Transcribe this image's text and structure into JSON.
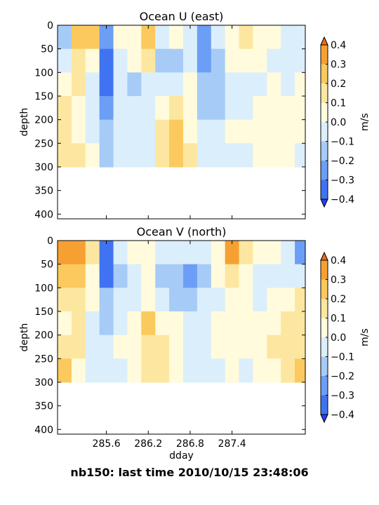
{
  "figure": {
    "footer": "nb150: last time 2010/10/15 23:48:06",
    "shared_xlabel": "dday"
  },
  "colormap": {
    "levels": [
      -0.4,
      -0.3,
      -0.2,
      -0.1,
      0.0,
      0.1,
      0.2,
      0.3,
      0.4
    ],
    "colors": [
      "#2a3ef0",
      "#3f73f2",
      "#6c9ef5",
      "#a6cbf6",
      "#dbeefb",
      "#fffbdc",
      "#fde7a0",
      "#fbc95d",
      "#f7a032",
      "#ef6a16"
    ],
    "extend": "both",
    "tick_labels": [
      "0.4",
      "0.3",
      "0.2",
      "0.1",
      "0.0",
      "−0.1",
      "−0.2",
      "−0.3",
      "−0.4"
    ],
    "unit_label": "m/s"
  },
  "chart_data": [
    {
      "type": "heatmap",
      "title": "Ocean U (east)",
      "xlabel": "",
      "ylabel": "depth",
      "x_ticks": [
        "285.6",
        "286.2",
        "286.8",
        "287.4"
      ],
      "x_tick_values": [
        285.6,
        286.2,
        286.8,
        287.4
      ],
      "xlim": [
        284.9,
        288.45
      ],
      "y_ticks": [
        "0",
        "50",
        "100",
        "150",
        "200",
        "250",
        "300",
        "350",
        "400"
      ],
      "y_tick_values": [
        0,
        50,
        100,
        150,
        200,
        250,
        300,
        350,
        400
      ],
      "ylim": [
        410,
        0
      ],
      "y_inverted": true,
      "depth_bins": [
        25,
        75,
        125,
        175,
        225,
        275
      ],
      "day_bins": [
        285.0,
        285.2,
        285.4,
        285.6,
        285.8,
        286.0,
        286.2,
        286.4,
        286.6,
        286.8,
        287.0,
        287.2,
        287.4,
        287.6,
        287.8,
        288.0,
        288.2,
        288.4
      ],
      "values": [
        [
          -0.15,
          0.2,
          0.2,
          -0.25,
          0.0,
          0.05,
          0.25,
          -0.05,
          0.0,
          -0.05,
          -0.3,
          -0.1,
          0.05,
          0.1,
          0.05,
          0.0,
          -0.05,
          -0.1
        ],
        [
          -0.1,
          0.1,
          0.0,
          -0.4,
          -0.1,
          0.0,
          0.1,
          -0.15,
          -0.2,
          -0.1,
          -0.25,
          -0.15,
          0.0,
          0.05,
          0.0,
          -0.05,
          -0.1,
          -0.1
        ],
        [
          0.05,
          0.15,
          -0.05,
          -0.35,
          -0.1,
          -0.15,
          -0.05,
          -0.1,
          -0.05,
          0.0,
          -0.2,
          -0.15,
          -0.05,
          -0.05,
          -0.05,
          0.0,
          -0.05,
          0.0
        ],
        [
          0.1,
          0.05,
          -0.05,
          -0.25,
          -0.05,
          -0.1,
          -0.05,
          0.05,
          0.1,
          0.05,
          -0.15,
          -0.2,
          -0.05,
          -0.05,
          0.0,
          0.0,
          0.05,
          0.0
        ],
        [
          0.15,
          0.05,
          -0.1,
          -0.2,
          -0.1,
          -0.05,
          -0.05,
          0.15,
          0.2,
          0.05,
          -0.05,
          -0.05,
          0.05,
          0.0,
          0.05,
          0.05,
          0.05,
          0.0
        ],
        [
          0.15,
          0.1,
          0.05,
          -0.15,
          -0.05,
          -0.1,
          -0.05,
          0.15,
          0.2,
          0.1,
          -0.05,
          -0.1,
          -0.05,
          -0.05,
          0.0,
          0.05,
          0.0,
          -0.05
        ]
      ],
      "colorbar_label": "m/s"
    },
    {
      "type": "heatmap",
      "title": "Ocean V (north)",
      "xlabel": "dday",
      "ylabel": "depth",
      "x_ticks": [
        "285.6",
        "286.2",
        "286.8",
        "287.4"
      ],
      "x_tick_values": [
        285.6,
        286.2,
        286.8,
        287.4
      ],
      "xlim": [
        284.9,
        288.45
      ],
      "y_ticks": [
        "0",
        "50",
        "100",
        "150",
        "200",
        "250",
        "300",
        "350",
        "400"
      ],
      "y_tick_values": [
        0,
        50,
        100,
        150,
        200,
        250,
        300,
        350,
        400
      ],
      "ylim": [
        410,
        0
      ],
      "y_inverted": true,
      "depth_bins": [
        25,
        75,
        125,
        175,
        225,
        275
      ],
      "day_bins": [
        285.0,
        285.2,
        285.4,
        285.6,
        285.8,
        286.0,
        286.2,
        286.4,
        286.6,
        286.8,
        287.0,
        287.2,
        287.4,
        287.6,
        287.8,
        288.0,
        288.2,
        288.4
      ],
      "values": [
        [
          0.35,
          0.3,
          0.15,
          -0.4,
          -0.1,
          0.0,
          0.05,
          -0.1,
          -0.05,
          -0.1,
          -0.05,
          0.05,
          0.35,
          0.1,
          0.0,
          0.0,
          -0.1,
          -0.25
        ],
        [
          0.25,
          0.2,
          0.05,
          -0.35,
          -0.15,
          -0.05,
          0.0,
          -0.15,
          -0.2,
          -0.25,
          -0.15,
          0.0,
          0.15,
          0.05,
          -0.05,
          -0.05,
          -0.1,
          -0.1
        ],
        [
          0.1,
          0.1,
          0.0,
          -0.2,
          -0.1,
          -0.1,
          0.0,
          -0.1,
          -0.15,
          -0.2,
          -0.1,
          -0.05,
          0.05,
          0.0,
          -0.05,
          0.0,
          0.05,
          0.1
        ],
        [
          0.05,
          0.15,
          -0.05,
          -0.15,
          -0.05,
          0.0,
          0.2,
          0.05,
          0.0,
          -0.1,
          -0.1,
          0.0,
          0.05,
          0.0,
          0.0,
          0.05,
          0.1,
          0.15
        ],
        [
          0.15,
          0.1,
          -0.1,
          -0.1,
          0.0,
          0.05,
          0.15,
          0.1,
          0.05,
          -0.05,
          -0.1,
          0.0,
          0.05,
          0.0,
          0.05,
          0.1,
          0.15,
          0.1
        ],
        [
          0.2,
          0.05,
          -0.05,
          -0.05,
          -0.1,
          0.05,
          0.15,
          0.15,
          0.05,
          -0.05,
          -0.1,
          -0.05,
          0.0,
          -0.05,
          0.0,
          0.05,
          0.1,
          0.2
        ]
      ],
      "colorbar_label": "m/s"
    }
  ]
}
